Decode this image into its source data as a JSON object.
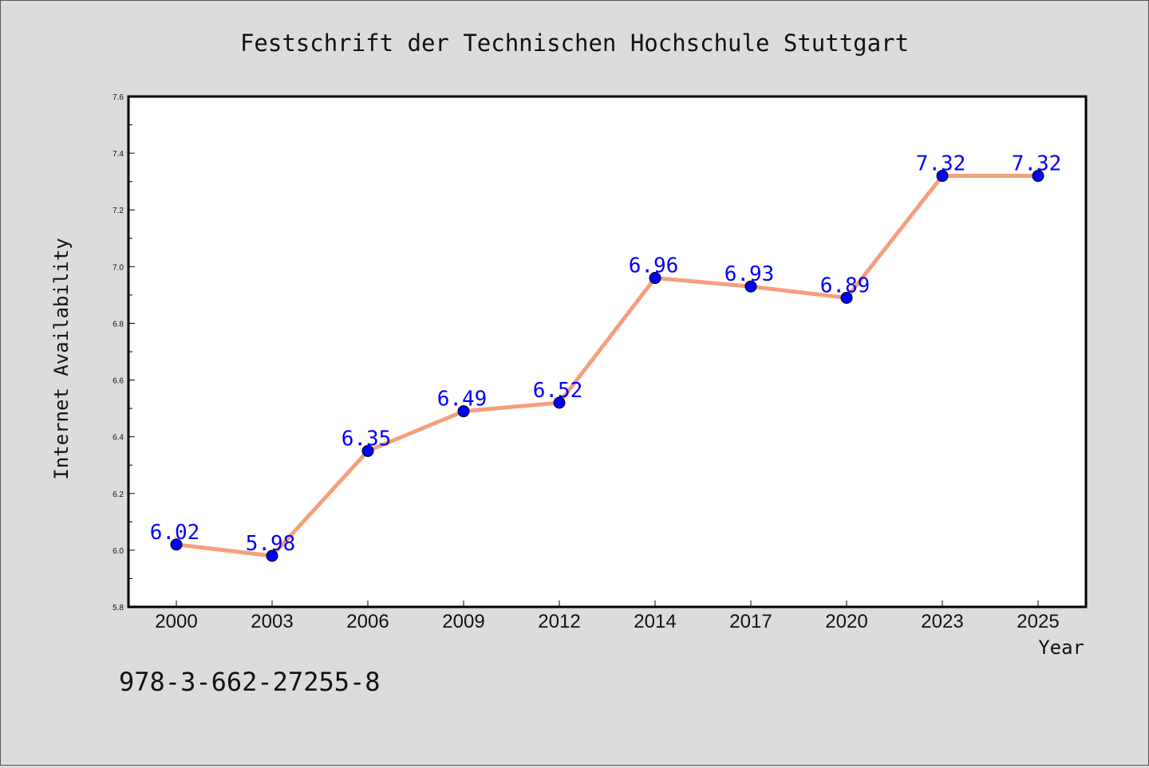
{
  "chart_data": {
    "type": "line",
    "title": "Festschrift der Technischen Hochschule Stuttgart",
    "xlabel": "Year",
    "ylabel": "Internet Availability",
    "categories": [
      "2000",
      "2003",
      "2006",
      "2009",
      "2012",
      "2014",
      "2017",
      "2020",
      "2023",
      "2025"
    ],
    "series": [
      {
        "values": [
          6.02,
          5.98,
          6.35,
          6.49,
          6.52,
          6.96,
          6.93,
          6.89,
          7.32,
          7.32
        ]
      }
    ],
    "ylim": [
      5.8,
      7.6
    ],
    "yticks": [
      "5.8",
      "6.0",
      "6.2",
      "6.4",
      "6.6",
      "6.8",
      "7.0",
      "7.2",
      "7.4",
      "7.6"
    ],
    "grid": false,
    "line_color": "#f4a07c",
    "marker_color": "#0000ff"
  },
  "footer": {
    "isbn": "978-3-662-27255-8"
  }
}
